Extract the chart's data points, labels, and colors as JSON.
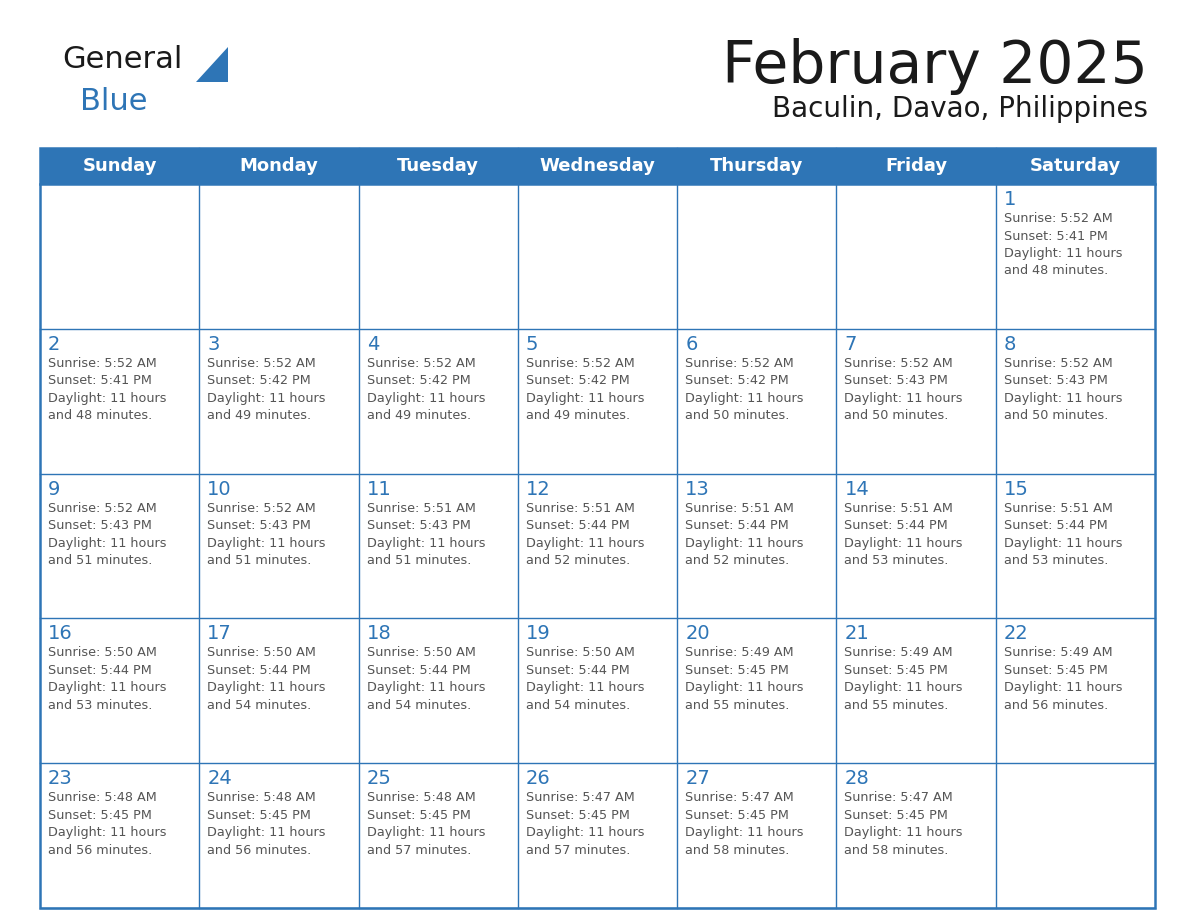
{
  "title": "February 2025",
  "subtitle": "Baculin, Davao, Philippines",
  "header_color": "#2E75B6",
  "header_text_color": "#FFFFFF",
  "cell_border_color": "#2E75B6",
  "day_number_color": "#2E75B6",
  "cell_text_color": "#555555",
  "background_color": "#FFFFFF",
  "days_of_week": [
    "Sunday",
    "Monday",
    "Tuesday",
    "Wednesday",
    "Thursday",
    "Friday",
    "Saturday"
  ],
  "calendar_data": [
    [
      {
        "day": null
      },
      {
        "day": null
      },
      {
        "day": null
      },
      {
        "day": null
      },
      {
        "day": null
      },
      {
        "day": null
      },
      {
        "day": 1,
        "sunrise": "5:52 AM",
        "sunset": "5:41 PM",
        "daylight_hours": 11,
        "daylight_minutes": 48
      }
    ],
    [
      {
        "day": 2,
        "sunrise": "5:52 AM",
        "sunset": "5:41 PM",
        "daylight_hours": 11,
        "daylight_minutes": 48
      },
      {
        "day": 3,
        "sunrise": "5:52 AM",
        "sunset": "5:42 PM",
        "daylight_hours": 11,
        "daylight_minutes": 49
      },
      {
        "day": 4,
        "sunrise": "5:52 AM",
        "sunset": "5:42 PM",
        "daylight_hours": 11,
        "daylight_minutes": 49
      },
      {
        "day": 5,
        "sunrise": "5:52 AM",
        "sunset": "5:42 PM",
        "daylight_hours": 11,
        "daylight_minutes": 49
      },
      {
        "day": 6,
        "sunrise": "5:52 AM",
        "sunset": "5:42 PM",
        "daylight_hours": 11,
        "daylight_minutes": 50
      },
      {
        "day": 7,
        "sunrise": "5:52 AM",
        "sunset": "5:43 PM",
        "daylight_hours": 11,
        "daylight_minutes": 50
      },
      {
        "day": 8,
        "sunrise": "5:52 AM",
        "sunset": "5:43 PM",
        "daylight_hours": 11,
        "daylight_minutes": 50
      }
    ],
    [
      {
        "day": 9,
        "sunrise": "5:52 AM",
        "sunset": "5:43 PM",
        "daylight_hours": 11,
        "daylight_minutes": 51
      },
      {
        "day": 10,
        "sunrise": "5:52 AM",
        "sunset": "5:43 PM",
        "daylight_hours": 11,
        "daylight_minutes": 51
      },
      {
        "day": 11,
        "sunrise": "5:51 AM",
        "sunset": "5:43 PM",
        "daylight_hours": 11,
        "daylight_minutes": 51
      },
      {
        "day": 12,
        "sunrise": "5:51 AM",
        "sunset": "5:44 PM",
        "daylight_hours": 11,
        "daylight_minutes": 52
      },
      {
        "day": 13,
        "sunrise": "5:51 AM",
        "sunset": "5:44 PM",
        "daylight_hours": 11,
        "daylight_minutes": 52
      },
      {
        "day": 14,
        "sunrise": "5:51 AM",
        "sunset": "5:44 PM",
        "daylight_hours": 11,
        "daylight_minutes": 53
      },
      {
        "day": 15,
        "sunrise": "5:51 AM",
        "sunset": "5:44 PM",
        "daylight_hours": 11,
        "daylight_minutes": 53
      }
    ],
    [
      {
        "day": 16,
        "sunrise": "5:50 AM",
        "sunset": "5:44 PM",
        "daylight_hours": 11,
        "daylight_minutes": 53
      },
      {
        "day": 17,
        "sunrise": "5:50 AM",
        "sunset": "5:44 PM",
        "daylight_hours": 11,
        "daylight_minutes": 54
      },
      {
        "day": 18,
        "sunrise": "5:50 AM",
        "sunset": "5:44 PM",
        "daylight_hours": 11,
        "daylight_minutes": 54
      },
      {
        "day": 19,
        "sunrise": "5:50 AM",
        "sunset": "5:44 PM",
        "daylight_hours": 11,
        "daylight_minutes": 54
      },
      {
        "day": 20,
        "sunrise": "5:49 AM",
        "sunset": "5:45 PM",
        "daylight_hours": 11,
        "daylight_minutes": 55
      },
      {
        "day": 21,
        "sunrise": "5:49 AM",
        "sunset": "5:45 PM",
        "daylight_hours": 11,
        "daylight_minutes": 55
      },
      {
        "day": 22,
        "sunrise": "5:49 AM",
        "sunset": "5:45 PM",
        "daylight_hours": 11,
        "daylight_minutes": 56
      }
    ],
    [
      {
        "day": 23,
        "sunrise": "5:48 AM",
        "sunset": "5:45 PM",
        "daylight_hours": 11,
        "daylight_minutes": 56
      },
      {
        "day": 24,
        "sunrise": "5:48 AM",
        "sunset": "5:45 PM",
        "daylight_hours": 11,
        "daylight_minutes": 56
      },
      {
        "day": 25,
        "sunrise": "5:48 AM",
        "sunset": "5:45 PM",
        "daylight_hours": 11,
        "daylight_minutes": 57
      },
      {
        "day": 26,
        "sunrise": "5:47 AM",
        "sunset": "5:45 PM",
        "daylight_hours": 11,
        "daylight_minutes": 57
      },
      {
        "day": 27,
        "sunrise": "5:47 AM",
        "sunset": "5:45 PM",
        "daylight_hours": 11,
        "daylight_minutes": 58
      },
      {
        "day": 28,
        "sunrise": "5:47 AM",
        "sunset": "5:45 PM",
        "daylight_hours": 11,
        "daylight_minutes": 58
      },
      {
        "day": null
      }
    ]
  ],
  "logo_general_color": "#1a1a1a",
  "logo_blue_color": "#2E75B6",
  "title_color": "#1a1a1a",
  "subtitle_color": "#1a1a1a"
}
